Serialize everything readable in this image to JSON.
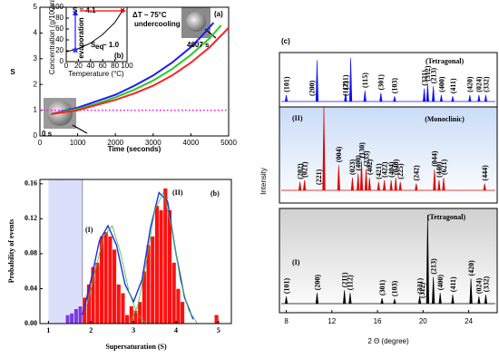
{
  "chart_data": [
    {
      "type": "line",
      "panel_label": "(a)",
      "x_label": "Time (seconds)",
      "y_label": "S",
      "xlim": [
        0,
        5000
      ],
      "xticks": [
        0,
        1000,
        2000,
        3000,
        4000,
        5000
      ],
      "ylim": [
        0,
        5
      ],
      "yticks": [
        0,
        1,
        2,
        3,
        4,
        5
      ],
      "series": [
        {
          "color": "#1a1aff",
          "x": [
            300,
            1000,
            1500,
            2000,
            2500,
            3000,
            3500,
            4000,
            4300,
            4600
          ],
          "values": [
            0.85,
            1.1,
            1.35,
            1.6,
            1.95,
            2.35,
            2.85,
            3.45,
            3.9,
            4.4
          ]
        },
        {
          "color": "#22cc22",
          "x": [
            300,
            1000,
            1500,
            2000,
            2500,
            3000,
            3500,
            4000,
            4500,
            4800
          ],
          "values": [
            0.85,
            1.05,
            1.25,
            1.5,
            1.8,
            2.15,
            2.6,
            3.15,
            3.8,
            4.3
          ]
        },
        {
          "color": "#ff2020",
          "x": [
            300,
            1000,
            1500,
            2000,
            2500,
            3000,
            3500,
            4000,
            4500,
            5000
          ],
          "values": [
            0.85,
            1.0,
            1.2,
            1.4,
            1.65,
            1.95,
            2.35,
            2.85,
            3.45,
            4.2
          ]
        }
      ],
      "reference_line": {
        "value": 1,
        "color": "#ff00ff"
      },
      "annotations": [
        "0 s",
        "4607 s"
      ]
    },
    {
      "type": "line",
      "panel_label": "(b)",
      "x_label": "Temperature (°C)",
      "y_label": "Concentration (g/100mL)",
      "xlim": [
        0,
        100
      ],
      "xticks": [
        0,
        20,
        40,
        60,
        80,
        100
      ],
      "ylim": [
        0,
        100
      ],
      "yticks": [
        0,
        20,
        40,
        60,
        80,
        100
      ],
      "series": [
        {
          "color": "#000000",
          "x": [
            0,
            20,
            40,
            60,
            80,
            95
          ],
          "values": [
            18,
            24,
            34,
            50,
            72,
            98
          ]
        }
      ],
      "annotations": [
        "S = 4.1",
        "ΔT ~ 75°C",
        "undercooling",
        "evaporation",
        "S",
        "eq",
        "~ 1.0"
      ]
    },
    {
      "type": "histogram",
      "panel_label": "(b)",
      "x_label": "Supersaturation (S)",
      "y_label": "Probability of events",
      "xlim": [
        0.8,
        5.3
      ],
      "xticks": [
        1,
        2,
        3,
        4,
        5
      ],
      "ylim": [
        0,
        0.165
      ],
      "yticks": [
        {
          "value": 0,
          "label": "0.00"
        },
        {
          "value": 0.04,
          "label": "0.04"
        },
        {
          "value": 0.08,
          "label": "0.08"
        },
        {
          "value": 0.12,
          "label": "0.12"
        },
        {
          "value": 0.16,
          "label": "0.16"
        }
      ],
      "bins": [
        1.4,
        1.5,
        1.6,
        1.7,
        1.8,
        1.9,
        2.0,
        2.1,
        2.2,
        2.3,
        2.4,
        2.5,
        2.6,
        2.7,
        2.8,
        2.9,
        3.0,
        3.1,
        3.2,
        3.3,
        3.4,
        3.5,
        3.6,
        3.7,
        3.8,
        3.9,
        4.0,
        4.1,
        4.2,
        4.3,
        4.4,
        4.5,
        4.6,
        4.7,
        4.8,
        4.9,
        5.0
      ],
      "values": [
        0.01,
        0.012,
        0.017,
        0.02,
        0.03,
        0.045,
        0.065,
        0.07,
        0.1,
        0.105,
        0.1,
        0.085,
        0.045,
        0.035,
        0.01,
        0.02,
        0.015,
        0.025,
        0.06,
        0.09,
        0.1,
        0.135,
        0.13,
        0.155,
        0.13,
        0.07,
        0.04,
        0.025,
        0,
        0,
        0,
        0,
        0,
        0,
        0,
        0.01
      ],
      "color": "#ff1010",
      "region": {
        "xlim": [
          1.0,
          1.8
        ],
        "color": "#dcdffb",
        "bar_color": "#7a3be0"
      },
      "fits": [
        {
          "color": "#1f2fe0",
          "x": [
            1.8,
            2.0,
            2.2,
            2.4,
            2.6,
            2.8,
            3.0,
            3.2,
            3.4,
            3.6,
            3.8,
            4.0,
            4.2,
            4.4
          ],
          "values": [
            0.01,
            0.05,
            0.095,
            0.112,
            0.09,
            0.045,
            0.025,
            0.05,
            0.11,
            0.15,
            0.14,
            0.08,
            0.03,
            0.005
          ]
        },
        {
          "color": "#3cc43c",
          "x": [
            1.9,
            2.1,
            2.3,
            2.5,
            2.7,
            2.9,
            3.1,
            3.3
          ],
          "values": [
            0.02,
            0.06,
            0.1,
            0.112,
            0.08,
            0.035,
            0.01,
            0
          ]
        },
        {
          "color": "#3cc43c",
          "x": [
            2.9,
            3.1,
            3.3,
            3.5,
            3.7,
            3.9,
            4.1,
            4.3,
            4.5
          ],
          "values": [
            0,
            0.02,
            0.07,
            0.13,
            0.15,
            0.11,
            0.05,
            0.015,
            0
          ]
        }
      ],
      "annotations": [
        "(I)",
        "(II)"
      ]
    },
    {
      "type": "spectrum",
      "panel_label": "(c)",
      "x_label": "2 Θ (degree)",
      "y_label": "Intensity",
      "xlim": [
        7.4,
        26.5
      ],
      "xticks": [
        8,
        12,
        16,
        20,
        24
      ],
      "series": [
        {
          "name": "(Tetragonal)",
          "color": "#1010ff",
          "peaks": [
            8.0,
            10.7,
            13.2,
            13.65,
            14.9,
            16.3,
            17.5,
            20.1,
            20.4,
            20.9,
            21.6,
            22.6,
            24.1,
            24.9,
            25.5
          ],
          "heights": [
            0.15,
            0.95,
            0.2,
            1.0,
            0.25,
            0.2,
            0.12,
            0.3,
            0.4,
            0.35,
            0.15,
            0.12,
            0.15,
            0.15,
            0.15
          ],
          "peak_labels": [
            "(101)",
            "(200)",
            "(211)",
            "(112)",
            "(115)",
            "(301)",
            "(103)",
            "(321)",
            "(312)",
            "(213)",
            "(400)",
            "(411)",
            "(420)",
            "(024)",
            "(332)"
          ]
        },
        {
          "name": "(Monoclinic)",
          "sample": "(II)",
          "color": "#e00000",
          "peaks": [
            9.2,
            9.6,
            11.3,
            12.6,
            13.8,
            14.3,
            14.6,
            15.0,
            15.3,
            16.1,
            16.6,
            17.2,
            17.6,
            18.0,
            19.4,
            21.0,
            21.4,
            21.8,
            25.4
          ],
          "heights": [
            0.1,
            0.12,
            1.0,
            0.3,
            0.15,
            0.2,
            0.35,
            0.25,
            0.15,
            0.1,
            0.12,
            0.12,
            0.15,
            0.1,
            0.08,
            0.25,
            0.12,
            0.15,
            0.08
          ],
          "peak_labels": [
            "(202)",
            "(021)",
            "(221)",
            "(004)",
            "(023)",
            "(400)",
            "(130)",
            "(233)",
            "(402)",
            "(421)",
            "(422)",
            "(404)",
            "(040)",
            "(225)",
            "(242)",
            "(044)",
            "(440)",
            "(621)",
            "(444)"
          ]
        },
        {
          "name": "(Tetragonal)",
          "sample": "(I)",
          "color": "#000000",
          "peaks": [
            8.0,
            10.7,
            13.1,
            13.6,
            16.4,
            17.5,
            19.7,
            20.4,
            20.9,
            21.5,
            22.6,
            24.2,
            24.9,
            25.5
          ],
          "heights": [
            0.08,
            0.12,
            0.15,
            0.12,
            0.06,
            0.05,
            0.08,
            1.0,
            0.3,
            0.12,
            0.1,
            0.28,
            0.08,
            0.1
          ],
          "peak_labels": [
            "(101)",
            "(200)",
            "(211)",
            "(112)",
            "(301)",
            "(103)",
            "(321)",
            "(312)",
            "(213)",
            "(400)",
            "(411)",
            "(420)",
            "(024)",
            "(332)"
          ]
        }
      ]
    }
  ]
}
